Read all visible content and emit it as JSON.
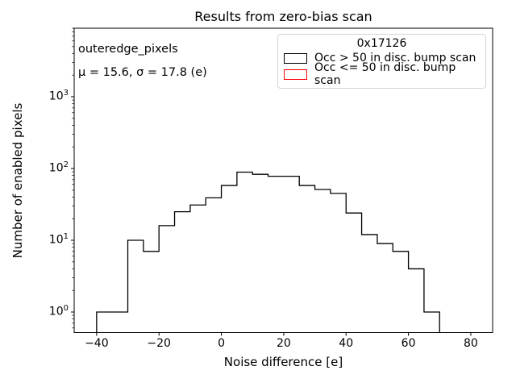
{
  "chart_data": {
    "type": "histogram-step",
    "title": "Results from zero-bias scan",
    "xlabel": "Noise difference [e]",
    "ylabel": "Number of enabled pixels",
    "yscale": "log",
    "grid": false,
    "bin_edges": [
      -40,
      -35,
      -30,
      -25,
      -20,
      -15,
      -10,
      -5,
      0,
      5,
      10,
      15,
      20,
      25,
      30,
      35,
      40,
      45,
      50,
      55,
      60,
      65,
      70
    ],
    "counts": [
      1,
      1,
      10,
      7,
      16,
      25,
      31,
      39,
      58,
      89,
      83,
      78,
      78,
      58,
      51,
      45,
      24,
      12,
      9,
      7,
      4,
      1
    ],
    "series_color": "#000000",
    "xticks": [
      -40,
      -20,
      0,
      20,
      40,
      60,
      80
    ],
    "ytick_exponents": [
      0,
      1,
      2,
      3
    ],
    "xlim": [
      -47.2,
      87.0
    ],
    "ylim": [
      0.517,
      9020
    ],
    "annotation": {
      "line1": "outeredge_pixels",
      "line2": "μ = 15.6, σ = 17.8 (e)",
      "mu": 15.6,
      "sigma": 17.8
    }
  },
  "legend": {
    "position": "upper right",
    "title": "0x17126",
    "entries": [
      {
        "label": "Occ > 50 in disc. bump scan",
        "color": "#000000"
      },
      {
        "label": "Occ <= 50 in disc. bump scan",
        "color": "#ff0000"
      }
    ]
  }
}
